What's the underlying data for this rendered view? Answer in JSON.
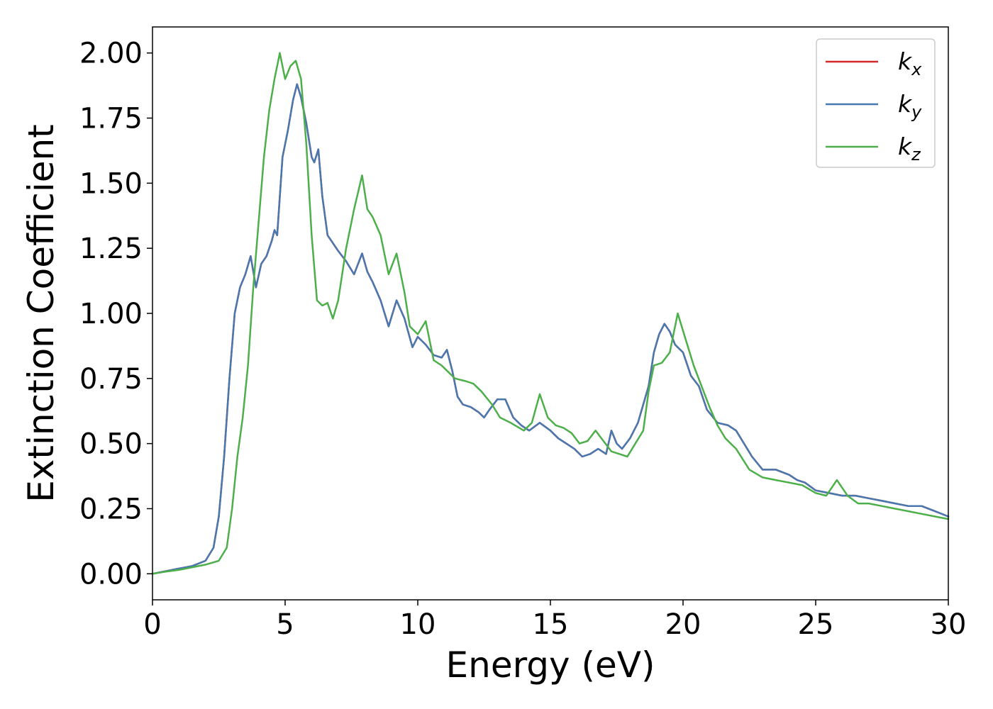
{
  "chart_data": {
    "type": "line",
    "title": "",
    "xlabel": "Energy (eV)",
    "ylabel": "Extinction Coefficient",
    "xlim": [
      0,
      30
    ],
    "ylim": [
      -0.1,
      2.1
    ],
    "xticks": [
      "0",
      "5",
      "10",
      "15",
      "20",
      "25",
      "30"
    ],
    "yticks": [
      "0.00",
      "0.25",
      "0.50",
      "0.75",
      "1.00",
      "1.25",
      "1.50",
      "1.75",
      "2.00"
    ],
    "grid": false,
    "legend": {
      "position": "top-right",
      "entries": [
        {
          "base": "k",
          "sub": "x"
        },
        {
          "base": "k",
          "sub": "y"
        },
        {
          "base": "k",
          "sub": "z"
        }
      ]
    },
    "series": [
      {
        "name": "k_x",
        "color": "#d62728",
        "x": [
          0,
          0.5,
          1,
          1.5,
          2,
          2.3,
          2.5,
          2.7,
          2.9,
          3.1,
          3.3,
          3.5,
          3.7,
          3.9,
          4.1,
          4.3,
          4.5,
          4.6,
          4.7,
          4.9,
          5.1,
          5.3,
          5.45,
          5.6,
          5.8,
          6.0,
          6.1,
          6.25,
          6.4,
          6.6,
          6.8,
          7.0,
          7.3,
          7.6,
          7.9,
          8.1,
          8.3,
          8.6,
          8.9,
          9.2,
          9.5,
          9.8,
          10.0,
          10.3,
          10.6,
          10.9,
          11.1,
          11.3,
          11.5,
          11.7,
          12.0,
          12.3,
          12.5,
          12.7,
          13.0,
          13.3,
          13.6,
          13.9,
          14.2,
          14.6,
          15.0,
          15.3,
          15.6,
          15.9,
          16.2,
          16.5,
          16.8,
          17.1,
          17.3,
          17.5,
          17.7,
          18.0,
          18.3,
          18.5,
          18.7,
          18.9,
          19.1,
          19.3,
          19.5,
          19.7,
          20.0,
          20.3,
          20.6,
          20.9,
          21.3,
          21.7,
          22.0,
          22.3,
          22.6,
          23.0,
          23.5,
          24.0,
          24.3,
          24.6,
          25.0,
          25.5,
          26.0,
          26.5,
          27.0,
          27.5,
          28.0,
          28.5,
          29.0,
          29.5,
          30.0
        ],
        "values": [
          0,
          0.01,
          0.02,
          0.03,
          0.05,
          0.1,
          0.22,
          0.45,
          0.75,
          1.0,
          1.1,
          1.15,
          1.22,
          1.1,
          1.19,
          1.22,
          1.28,
          1.32,
          1.3,
          1.6,
          1.7,
          1.82,
          1.88,
          1.83,
          1.73,
          1.6,
          1.58,
          1.63,
          1.45,
          1.3,
          1.27,
          1.24,
          1.2,
          1.15,
          1.23,
          1.16,
          1.12,
          1.05,
          0.95,
          1.05,
          0.98,
          0.87,
          0.91,
          0.88,
          0.84,
          0.83,
          0.86,
          0.78,
          0.68,
          0.65,
          0.64,
          0.62,
          0.6,
          0.63,
          0.67,
          0.67,
          0.6,
          0.57,
          0.55,
          0.58,
          0.55,
          0.52,
          0.5,
          0.48,
          0.45,
          0.46,
          0.48,
          0.46,
          0.55,
          0.5,
          0.48,
          0.52,
          0.58,
          0.65,
          0.72,
          0.85,
          0.92,
          0.96,
          0.93,
          0.88,
          0.85,
          0.76,
          0.72,
          0.63,
          0.58,
          0.57,
          0.55,
          0.5,
          0.45,
          0.4,
          0.4,
          0.38,
          0.36,
          0.35,
          0.32,
          0.31,
          0.3,
          0.3,
          0.29,
          0.28,
          0.27,
          0.26,
          0.26,
          0.24,
          0.22
        ]
      },
      {
        "name": "k_y",
        "color": "#4878b0",
        "x": [
          0,
          0.5,
          1,
          1.5,
          2,
          2.3,
          2.5,
          2.7,
          2.9,
          3.1,
          3.3,
          3.5,
          3.7,
          3.9,
          4.1,
          4.3,
          4.5,
          4.6,
          4.7,
          4.9,
          5.1,
          5.3,
          5.45,
          5.6,
          5.8,
          6.0,
          6.1,
          6.25,
          6.4,
          6.6,
          6.8,
          7.0,
          7.3,
          7.6,
          7.9,
          8.1,
          8.3,
          8.6,
          8.9,
          9.2,
          9.5,
          9.8,
          10.0,
          10.3,
          10.6,
          10.9,
          11.1,
          11.3,
          11.5,
          11.7,
          12.0,
          12.3,
          12.5,
          12.7,
          13.0,
          13.3,
          13.6,
          13.9,
          14.2,
          14.6,
          15.0,
          15.3,
          15.6,
          15.9,
          16.2,
          16.5,
          16.8,
          17.1,
          17.3,
          17.5,
          17.7,
          18.0,
          18.3,
          18.5,
          18.7,
          18.9,
          19.1,
          19.3,
          19.5,
          19.7,
          20.0,
          20.3,
          20.6,
          20.9,
          21.3,
          21.7,
          22.0,
          22.3,
          22.6,
          23.0,
          23.5,
          24.0,
          24.3,
          24.6,
          25.0,
          25.5,
          26.0,
          26.5,
          27.0,
          27.5,
          28.0,
          28.5,
          29.0,
          29.5,
          30.0
        ],
        "values": [
          0,
          0.01,
          0.02,
          0.03,
          0.05,
          0.1,
          0.22,
          0.45,
          0.75,
          1.0,
          1.1,
          1.15,
          1.22,
          1.1,
          1.19,
          1.22,
          1.28,
          1.32,
          1.3,
          1.6,
          1.7,
          1.82,
          1.88,
          1.83,
          1.73,
          1.6,
          1.58,
          1.63,
          1.45,
          1.3,
          1.27,
          1.24,
          1.2,
          1.15,
          1.23,
          1.16,
          1.12,
          1.05,
          0.95,
          1.05,
          0.98,
          0.87,
          0.91,
          0.88,
          0.84,
          0.83,
          0.86,
          0.78,
          0.68,
          0.65,
          0.64,
          0.62,
          0.6,
          0.63,
          0.67,
          0.67,
          0.6,
          0.57,
          0.55,
          0.58,
          0.55,
          0.52,
          0.5,
          0.48,
          0.45,
          0.46,
          0.48,
          0.46,
          0.55,
          0.5,
          0.48,
          0.52,
          0.58,
          0.65,
          0.72,
          0.85,
          0.92,
          0.96,
          0.93,
          0.88,
          0.85,
          0.76,
          0.72,
          0.63,
          0.58,
          0.57,
          0.55,
          0.5,
          0.45,
          0.4,
          0.4,
          0.38,
          0.36,
          0.35,
          0.32,
          0.31,
          0.3,
          0.3,
          0.29,
          0.28,
          0.27,
          0.26,
          0.26,
          0.24,
          0.22
        ]
      },
      {
        "name": "k_z",
        "color": "#4daf4a",
        "x": [
          0,
          0.5,
          1,
          1.5,
          2,
          2.5,
          2.8,
          3.0,
          3.2,
          3.4,
          3.6,
          3.8,
          4.0,
          4.2,
          4.4,
          4.6,
          4.8,
          5.0,
          5.2,
          5.4,
          5.6,
          5.8,
          6.0,
          6.2,
          6.4,
          6.6,
          6.8,
          7.0,
          7.3,
          7.6,
          7.9,
          8.1,
          8.3,
          8.6,
          8.9,
          9.2,
          9.5,
          9.7,
          10.0,
          10.3,
          10.6,
          10.9,
          11.1,
          11.4,
          11.8,
          12.1,
          12.4,
          12.8,
          13.1,
          13.5,
          14.0,
          14.3,
          14.6,
          14.9,
          15.2,
          15.5,
          15.8,
          16.1,
          16.4,
          16.7,
          17.0,
          17.3,
          17.6,
          17.9,
          18.2,
          18.5,
          18.7,
          18.9,
          19.2,
          19.5,
          19.8,
          20.1,
          20.4,
          20.7,
          21.0,
          21.3,
          21.6,
          22.0,
          22.5,
          23.0,
          23.5,
          24.0,
          24.5,
          25.0,
          25.4,
          25.8,
          26.2,
          26.6,
          27.0,
          27.5,
          28.0,
          28.5,
          29.0,
          29.5,
          30.0
        ],
        "values": [
          0,
          0.008,
          0.015,
          0.025,
          0.035,
          0.05,
          0.1,
          0.25,
          0.45,
          0.6,
          0.8,
          1.1,
          1.35,
          1.6,
          1.78,
          1.9,
          2.0,
          1.9,
          1.95,
          1.97,
          1.9,
          1.65,
          1.3,
          1.05,
          1.03,
          1.04,
          0.98,
          1.05,
          1.25,
          1.4,
          1.53,
          1.4,
          1.37,
          1.3,
          1.15,
          1.23,
          1.08,
          0.95,
          0.92,
          0.97,
          0.82,
          0.8,
          0.78,
          0.75,
          0.74,
          0.73,
          0.7,
          0.65,
          0.6,
          0.58,
          0.55,
          0.58,
          0.69,
          0.6,
          0.57,
          0.56,
          0.54,
          0.5,
          0.51,
          0.55,
          0.51,
          0.47,
          0.46,
          0.45,
          0.5,
          0.55,
          0.7,
          0.8,
          0.81,
          0.85,
          1.0,
          0.9,
          0.8,
          0.72,
          0.64,
          0.57,
          0.52,
          0.48,
          0.4,
          0.37,
          0.36,
          0.35,
          0.34,
          0.31,
          0.3,
          0.36,
          0.3,
          0.27,
          0.27,
          0.26,
          0.25,
          0.24,
          0.23,
          0.22,
          0.21
        ]
      }
    ]
  }
}
